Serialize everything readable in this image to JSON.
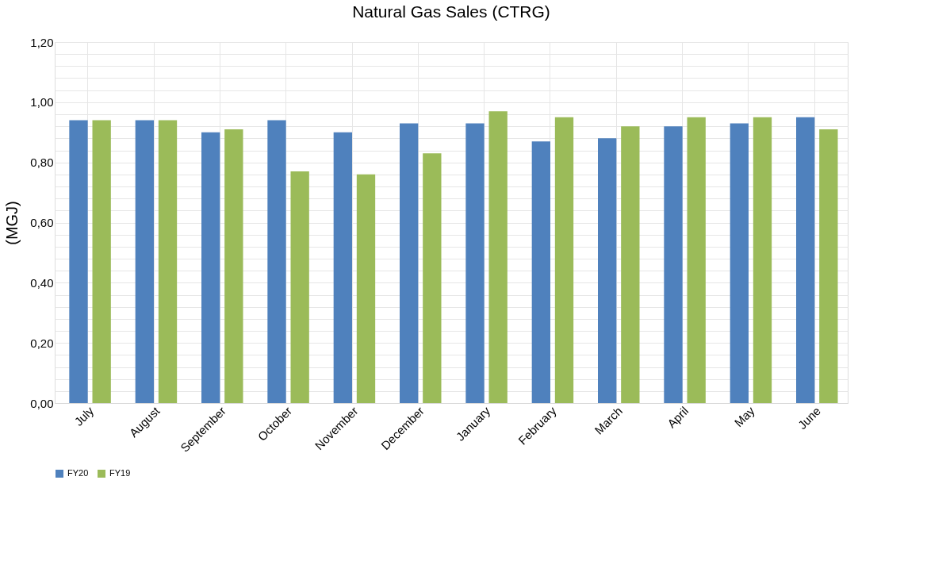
{
  "chart_data": {
    "type": "bar",
    "title": "Natural Gas Sales (CTRG)",
    "ylabel": "(MGJ)",
    "categories": [
      "July",
      "August",
      "September",
      "October",
      "November",
      "December",
      "January",
      "February",
      "March",
      "April",
      "May",
      "June"
    ],
    "series": [
      {
        "name": "FY20",
        "color": "#4f81bd",
        "values": [
          0.94,
          0.94,
          0.9,
          0.94,
          0.9,
          0.93,
          0.93,
          0.87,
          0.88,
          0.92,
          0.93,
          0.95
        ]
      },
      {
        "name": "FY19",
        "color": "#9bbb59",
        "values": [
          0.94,
          0.94,
          0.91,
          0.77,
          0.76,
          0.83,
          0.97,
          0.95,
          0.92,
          0.95,
          0.95,
          0.91
        ]
      }
    ],
    "ylim": [
      0,
      1.2
    ],
    "yticks": [
      {
        "value": 0,
        "label": "0,00"
      },
      {
        "value": 0.04,
        "label": null
      },
      {
        "value": 0.08,
        "label": null
      },
      {
        "value": 0.12,
        "label": null
      },
      {
        "value": 0.16,
        "label": null
      },
      {
        "value": 0.2,
        "label": "0,20"
      },
      {
        "value": 0.24,
        "label": null
      },
      {
        "value": 0.28,
        "label": null
      },
      {
        "value": 0.32,
        "label": null
      },
      {
        "value": 0.36,
        "label": null
      },
      {
        "value": 0.4,
        "label": "0,40"
      },
      {
        "value": 0.44,
        "label": null
      },
      {
        "value": 0.48,
        "label": null
      },
      {
        "value": 0.52,
        "label": null
      },
      {
        "value": 0.56,
        "label": null
      },
      {
        "value": 0.6,
        "label": "0,60"
      },
      {
        "value": 0.64,
        "label": null
      },
      {
        "value": 0.68,
        "label": null
      },
      {
        "value": 0.72,
        "label": null
      },
      {
        "value": 0.76,
        "label": null
      },
      {
        "value": 0.8,
        "label": "0,80"
      },
      {
        "value": 0.84,
        "label": null
      },
      {
        "value": 0.88,
        "label": null
      },
      {
        "value": 0.92,
        "label": null
      },
      {
        "value": 0.96,
        "label": null
      },
      {
        "value": 1.0,
        "label": "1,00"
      },
      {
        "value": 1.04,
        "label": null
      },
      {
        "value": 1.08,
        "label": null
      },
      {
        "value": 1.12,
        "label": null
      },
      {
        "value": 1.16,
        "label": null
      },
      {
        "value": 1.2,
        "label": "1,20"
      }
    ],
    "grid": true,
    "legend": "bottom"
  }
}
